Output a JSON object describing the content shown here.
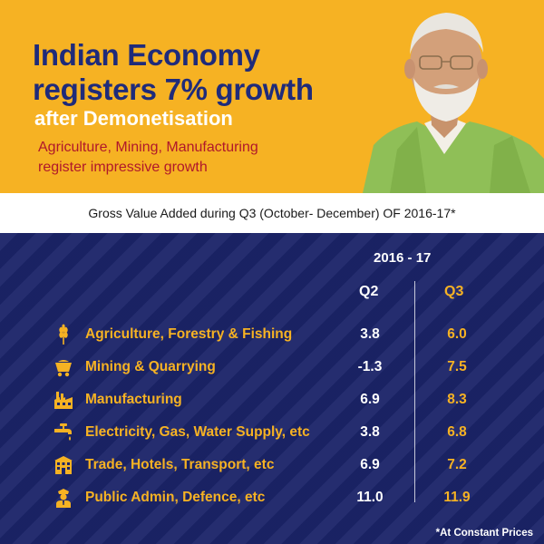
{
  "header": {
    "title_line1": "Indian Economy",
    "title_line2": "registers 7% growth",
    "title_line3": "after Demonetisation",
    "subtitle_line1": "Agriculture, Mining, Manufacturing",
    "subtitle_line2": "register impressive growth"
  },
  "strip": {
    "caption": "Gross Value Added during  Q3 (October- December) OF 2016-17*"
  },
  "table": {
    "year": "2016 - 17",
    "col_q2": "Q2",
    "col_q3": "Q3",
    "rows": [
      {
        "icon": "wheat-icon",
        "label": "Agriculture, Forestry & Fishing",
        "q2": "3.8",
        "q3": "6.0"
      },
      {
        "icon": "mine-cart-icon",
        "label": "Mining & Quarrying",
        "q2": "-1.3",
        "q3": "7.5"
      },
      {
        "icon": "factory-icon",
        "label": "Manufacturing",
        "q2": "6.9",
        "q3": "8.3"
      },
      {
        "icon": "water-tap-icon",
        "label": "Electricity, Gas, Water Supply, etc",
        "q2": "3.8",
        "q3": "6.8"
      },
      {
        "icon": "building-icon",
        "label": "Trade, Hotels, Transport, etc",
        "q2": "6.9",
        "q3": "7.2"
      },
      {
        "icon": "officer-icon",
        "label": "Public Admin, Defence, etc",
        "q2": "11.0",
        "q3": "11.9"
      }
    ]
  },
  "footnote": "*At Constant Prices",
  "colors": {
    "navy": "#1b2469",
    "gold": "#f6b223",
    "title_blue": "#1f2b7a",
    "subtitle_red": "#b0182b"
  }
}
